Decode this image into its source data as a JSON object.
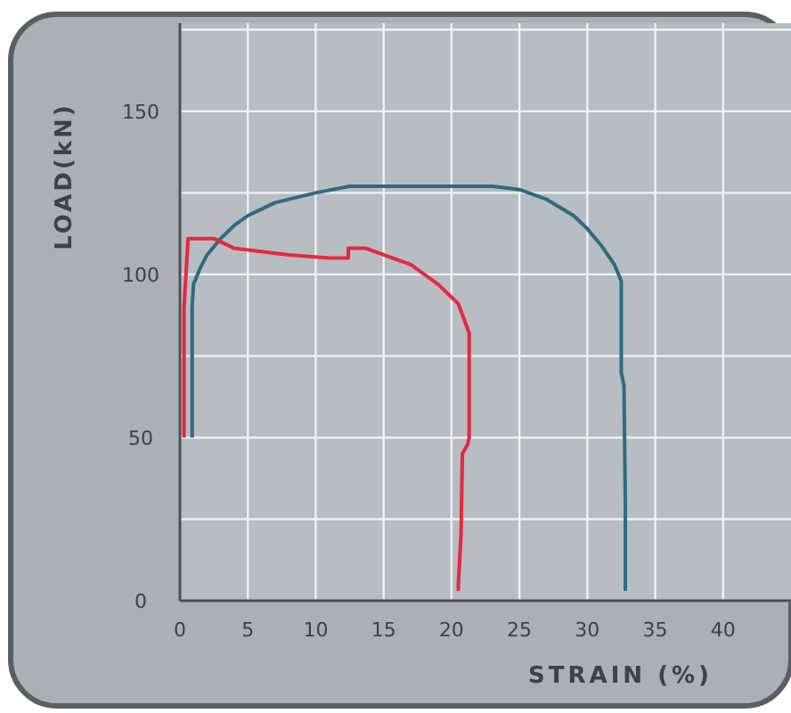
{
  "chart_data": {
    "type": "line",
    "xlabel": "STRAIN (%)",
    "ylabel": "LOAD(kN)",
    "xlim": [
      0,
      45
    ],
    "ylim": [
      0,
      177
    ],
    "xticks": [
      0,
      5,
      10,
      15,
      20,
      25,
      30,
      35,
      40
    ],
    "yticks": [
      0,
      {
        "value": 25,
        "label": null
      },
      50,
      {
        "value": 75,
        "label": null
      },
      100,
      {
        "value": 125,
        "label": null
      },
      150,
      {
        "value": 175,
        "label": null
      }
    ],
    "grid": true,
    "marker": "none",
    "line_style": "solid",
    "series": [
      {
        "color": "#2f6a86",
        "x": [
          0.9,
          0.9,
          1,
          1.5,
          2,
          3,
          4,
          5,
          7,
          10,
          12.5,
          15,
          20,
          23,
          25,
          27,
          29,
          30,
          31,
          32,
          32.5,
          32.5,
          32.7,
          32.8,
          32.8
        ],
        "values": [
          50,
          90,
          97,
          102,
          106,
          111,
          115,
          118,
          122,
          125,
          127,
          127,
          127,
          127,
          126,
          123,
          118,
          114,
          109,
          103,
          98,
          70,
          66,
          30,
          3
        ]
      },
      {
        "color": "#e42a3c",
        "x": [
          0.3,
          0.3,
          0.6,
          2.5,
          4,
          8,
          11,
          12.4,
          12.4,
          13.7,
          15,
          17,
          19,
          20.5,
          21.3,
          21.3,
          21.2,
          20.8,
          20.7,
          20.5,
          20.5
        ],
        "values": [
          50,
          90,
          111,
          111,
          108,
          106,
          105,
          105,
          108,
          108,
          106,
          103,
          97,
          91,
          82,
          50,
          48,
          45,
          20,
          5,
          3
        ]
      }
    ]
  }
}
